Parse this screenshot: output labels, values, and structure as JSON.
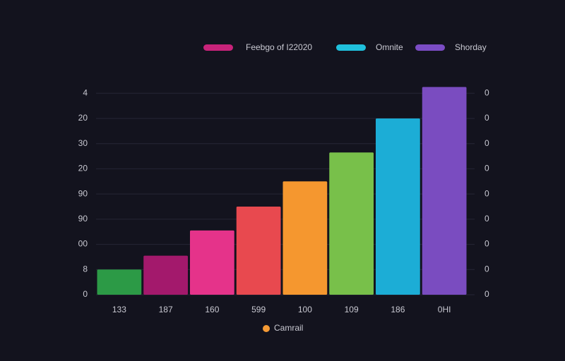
{
  "chart_data": {
    "type": "bar",
    "legend": [
      {
        "name": "Feebgo of I22020",
        "color": "#c8237a"
      },
      {
        "name": "Omnite",
        "color": "#1fc0dc"
      },
      {
        "name": "Shorday",
        "color": "#7b4cc4"
      }
    ],
    "bottom_legend": {
      "name": "Camrail",
      "color": "#f59a35"
    },
    "categories": [
      "133",
      "187",
      "160",
      "599",
      "100",
      "109",
      "186",
      "0HI"
    ],
    "values": [
      1.0,
      1.55,
      2.55,
      3.5,
      4.5,
      5.65,
      7.0,
      8.25
    ],
    "colors": [
      "#2c9a46",
      "#a3196c",
      "#e5338a",
      "#e8494f",
      "#f5972f",
      "#78c04a",
      "#1cadd6",
      "#7a4cc0"
    ],
    "ylim": [
      0,
      8.4
    ],
    "yticks": [
      {
        "value": 0,
        "label": "0"
      },
      {
        "value": 1,
        "label": "8"
      },
      {
        "value": 2,
        "label": "00"
      },
      {
        "value": 3,
        "label": "90"
      },
      {
        "value": 4,
        "label": "90"
      },
      {
        "value": 5,
        "label": "20"
      },
      {
        "value": 6,
        "label": "30"
      },
      {
        "value": 7,
        "label": "20"
      },
      {
        "value": 8,
        "label": "4"
      }
    ],
    "y2ticks": [
      {
        "value": 0,
        "label": "0"
      },
      {
        "value": 1,
        "label": "0"
      },
      {
        "value": 2,
        "label": "0"
      },
      {
        "value": 3,
        "label": "0"
      },
      {
        "value": 4,
        "label": "0"
      },
      {
        "value": 5,
        "label": "0"
      },
      {
        "value": 6,
        "label": "0"
      },
      {
        "value": 7,
        "label": "0"
      },
      {
        "value": 8,
        "label": "0"
      }
    ],
    "grid": true
  }
}
